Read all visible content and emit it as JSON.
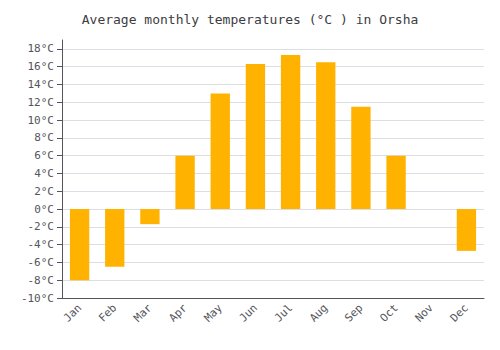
{
  "chart_data": {
    "type": "bar",
    "title": "Average monthly temperatures (°C ) in Orsha",
    "categories": [
      "Jan",
      "Feb",
      "Mar",
      "Apr",
      "May",
      "Jun",
      "Jul",
      "Aug",
      "Sep",
      "Oct",
      "Nov",
      "Dec"
    ],
    "values": [
      -8.0,
      -6.5,
      -1.7,
      6.0,
      13.0,
      16.3,
      17.3,
      16.5,
      11.5,
      6.0,
      0.0,
      -4.7
    ],
    "color": "#FFB300",
    "ylim": [
      -10,
      19
    ],
    "yticks": [
      {
        "value": -10,
        "label": "-10°C"
      },
      {
        "value": -8,
        "label": "-8°C"
      },
      {
        "value": -6,
        "label": "-6°C"
      },
      {
        "value": -4,
        "label": "-4°C"
      },
      {
        "value": -2,
        "label": "-2°C"
      },
      {
        "value": 0,
        "label": "0°C"
      },
      {
        "value": 2,
        "label": "2°C"
      },
      {
        "value": 4,
        "label": "4°C"
      },
      {
        "value": 6,
        "label": "6°C"
      },
      {
        "value": 8,
        "label": "8°C"
      },
      {
        "value": 10,
        "label": "10°C"
      },
      {
        "value": 12,
        "label": "12°C"
      },
      {
        "value": 14,
        "label": "14°C"
      },
      {
        "value": 16,
        "label": "16°C"
      },
      {
        "value": 18,
        "label": "18°C"
      }
    ],
    "grid": true
  }
}
